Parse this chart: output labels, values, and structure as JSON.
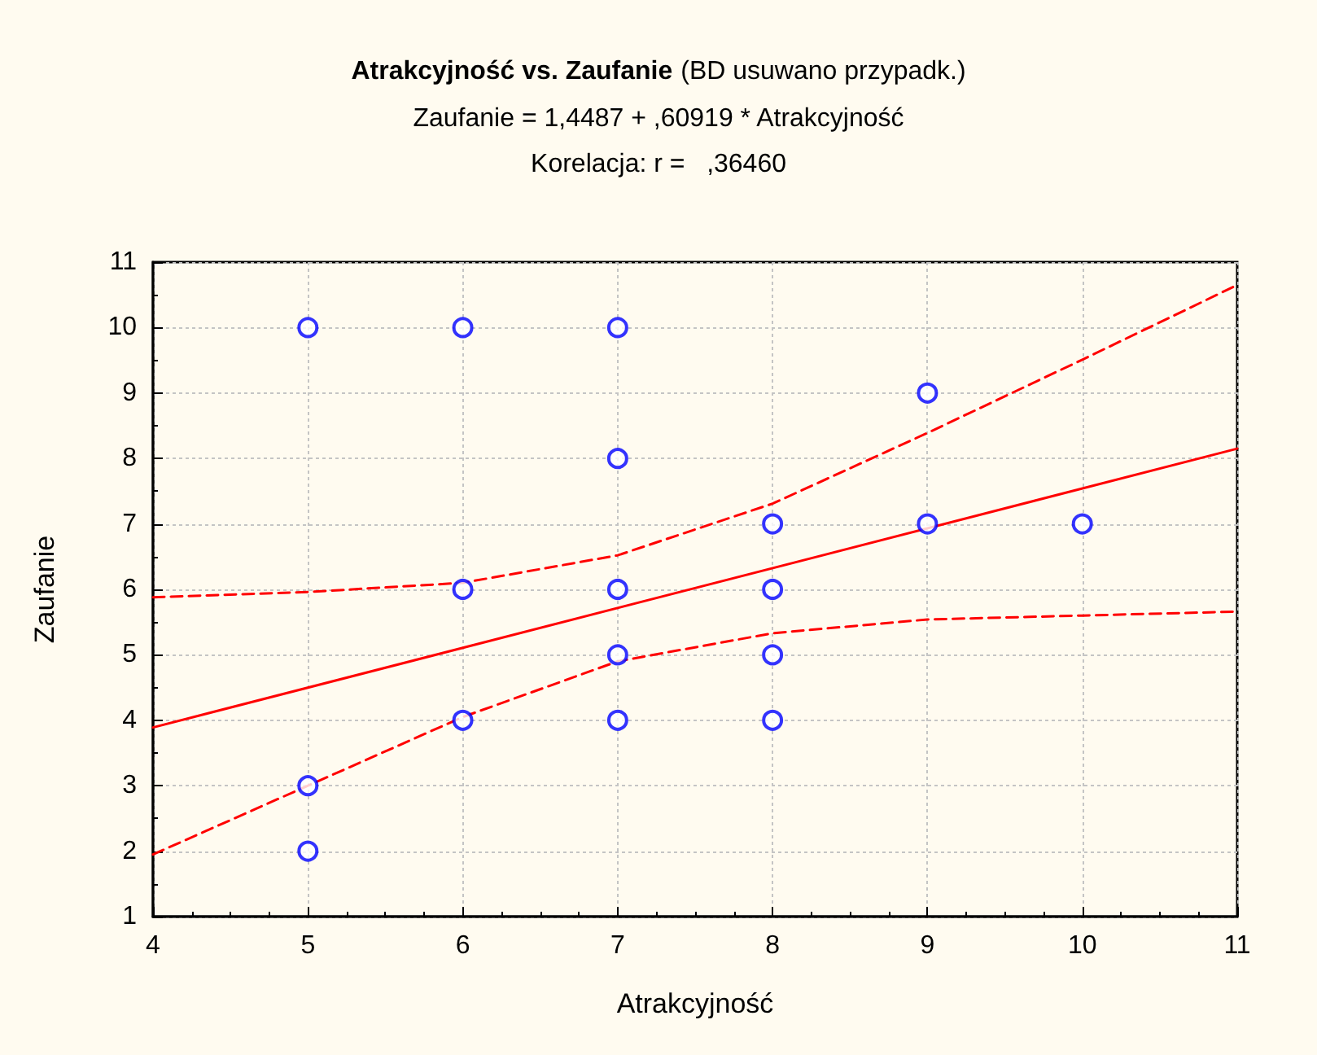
{
  "chart_data": {
    "type": "scatter",
    "title": "Atrakcyjność vs. Zaufanie",
    "subtitle": "(BD usuwano przypadk.)",
    "annotations": [
      "Zaufanie = 1,4487 + ,60919 * Atrakcyjność",
      "Korelacja: r =   ,36460"
    ],
    "xlabel": "Atrakcyjność",
    "ylabel": "Zaufanie",
    "xlim": [
      4,
      11
    ],
    "xticks": [
      4,
      5,
      6,
      7,
      8,
      9,
      10,
      11
    ],
    "ylim": [
      1,
      11
    ],
    "yticks": [
      1,
      2,
      3,
      4,
      5,
      6,
      7,
      8,
      9,
      10,
      11
    ],
    "grid": true,
    "series": [
      {
        "color": "#0000ff",
        "marker": "circle",
        "x": [
          5,
          6,
          7,
          7,
          9,
          8,
          9,
          10,
          6,
          7,
          8,
          7,
          8,
          6,
          7,
          8,
          5,
          5
        ],
        "values": [
          10,
          10,
          10,
          8,
          9,
          7,
          7,
          7,
          6,
          6,
          6,
          5,
          5,
          4,
          4,
          4,
          3,
          2
        ]
      },
      {
        "type": "line",
        "color": "#ff0000",
        "marker": "none",
        "line_style": "solid",
        "x": [
          4,
          11
        ],
        "values": [
          3.89,
          8.15
        ]
      },
      {
        "type": "line",
        "color": "#ff0000",
        "marker": "none",
        "line_style": "dashed",
        "x": [
          4,
          5,
          6,
          7,
          8,
          9,
          10,
          11
        ],
        "values": [
          5.88,
          5.96,
          6.1,
          6.52,
          7.31,
          8.39,
          9.51,
          10.65
        ]
      },
      {
        "type": "line",
        "color": "#ff0000",
        "marker": "none",
        "line_style": "dashed",
        "x": [
          4,
          5,
          6,
          7,
          8,
          9,
          10,
          11
        ],
        "values": [
          1.95,
          3.0,
          4.05,
          4.9,
          5.33,
          5.54,
          5.6,
          5.66
        ]
      }
    ]
  }
}
